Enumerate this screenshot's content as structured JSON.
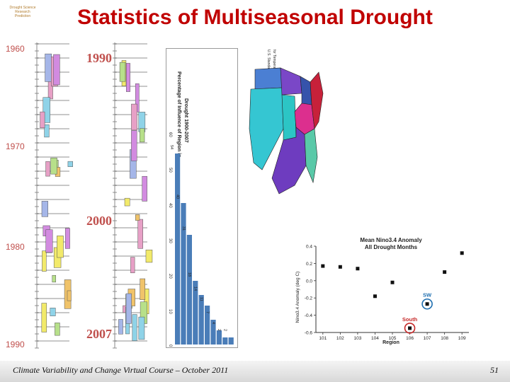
{
  "logo": {
    "line1": "Drought Science",
    "line2": "Research Prediction"
  },
  "title": "Statistics of Multiseasonal Drought",
  "timeline_left": {
    "years": [
      "1960",
      "1970",
      "1980",
      "1990"
    ]
  },
  "timeline_right": {
    "years": [
      "1990",
      "2000",
      "2007"
    ]
  },
  "bar_chart": {
    "title_lines": [
      "Percentage of Influence of Region in",
      "Drought 1900-2007"
    ],
    "ylabels": [
      "60",
      "50",
      "40",
      "30",
      "20",
      "10",
      "0"
    ],
    "values": [
      54,
      40,
      31,
      18,
      14,
      11,
      7,
      4,
      2,
      2
    ],
    "value_labels": [
      "54",
      "40",
      "31",
      "18",
      "14",
      "11",
      "7",
      "4",
      "2",
      "2"
    ]
  },
  "map": {
    "legend_lines": [
      "U.S. Standard Regions",
      "for Temperature and Precipitation"
    ],
    "colors": {
      "northwest": "#4b7fd3",
      "west": "#35c6d2",
      "southwest": "#2cc5c5",
      "wnc": "#7a47c7",
      "enc": "#3653ab",
      "central": "#dc2f8e",
      "south": "#6e3cbf",
      "southeast": "#59c9a8",
      "northeast": "#c7213a"
    }
  },
  "chart_data": {
    "type": "scatter",
    "title": "Mean Nino3.4 Anomaly\nAll Drought Months",
    "xlabel": "Region",
    "ylabel": "Nino3.4 Anomaly (deg C)",
    "x": [
      101,
      102,
      103,
      104,
      105,
      106,
      107,
      108,
      109
    ],
    "y": [
      0.17,
      0.16,
      0.14,
      -0.18,
      -0.02,
      -0.55,
      -0.27,
      0.1,
      0.32
    ],
    "xlim": [
      101,
      109
    ],
    "ylim": [
      -0.6,
      0.4
    ],
    "yticks": [
      "0.4",
      "0.2",
      "0.0",
      "-0.2",
      "-0.4",
      "-0.6"
    ],
    "xticks": [
      "101",
      "102",
      "103",
      "104",
      "105",
      "106",
      "107",
      "108",
      "109"
    ],
    "annotations": [
      {
        "label": "SW",
        "x": 107,
        "y": -0.27,
        "color": "#1f6fb0"
      },
      {
        "label": "South",
        "x": 106,
        "y": -0.55,
        "color": "#c62828"
      }
    ]
  },
  "footer": {
    "text": "Climate Variability and Change Virtual Course – October 2011",
    "page": "51"
  }
}
